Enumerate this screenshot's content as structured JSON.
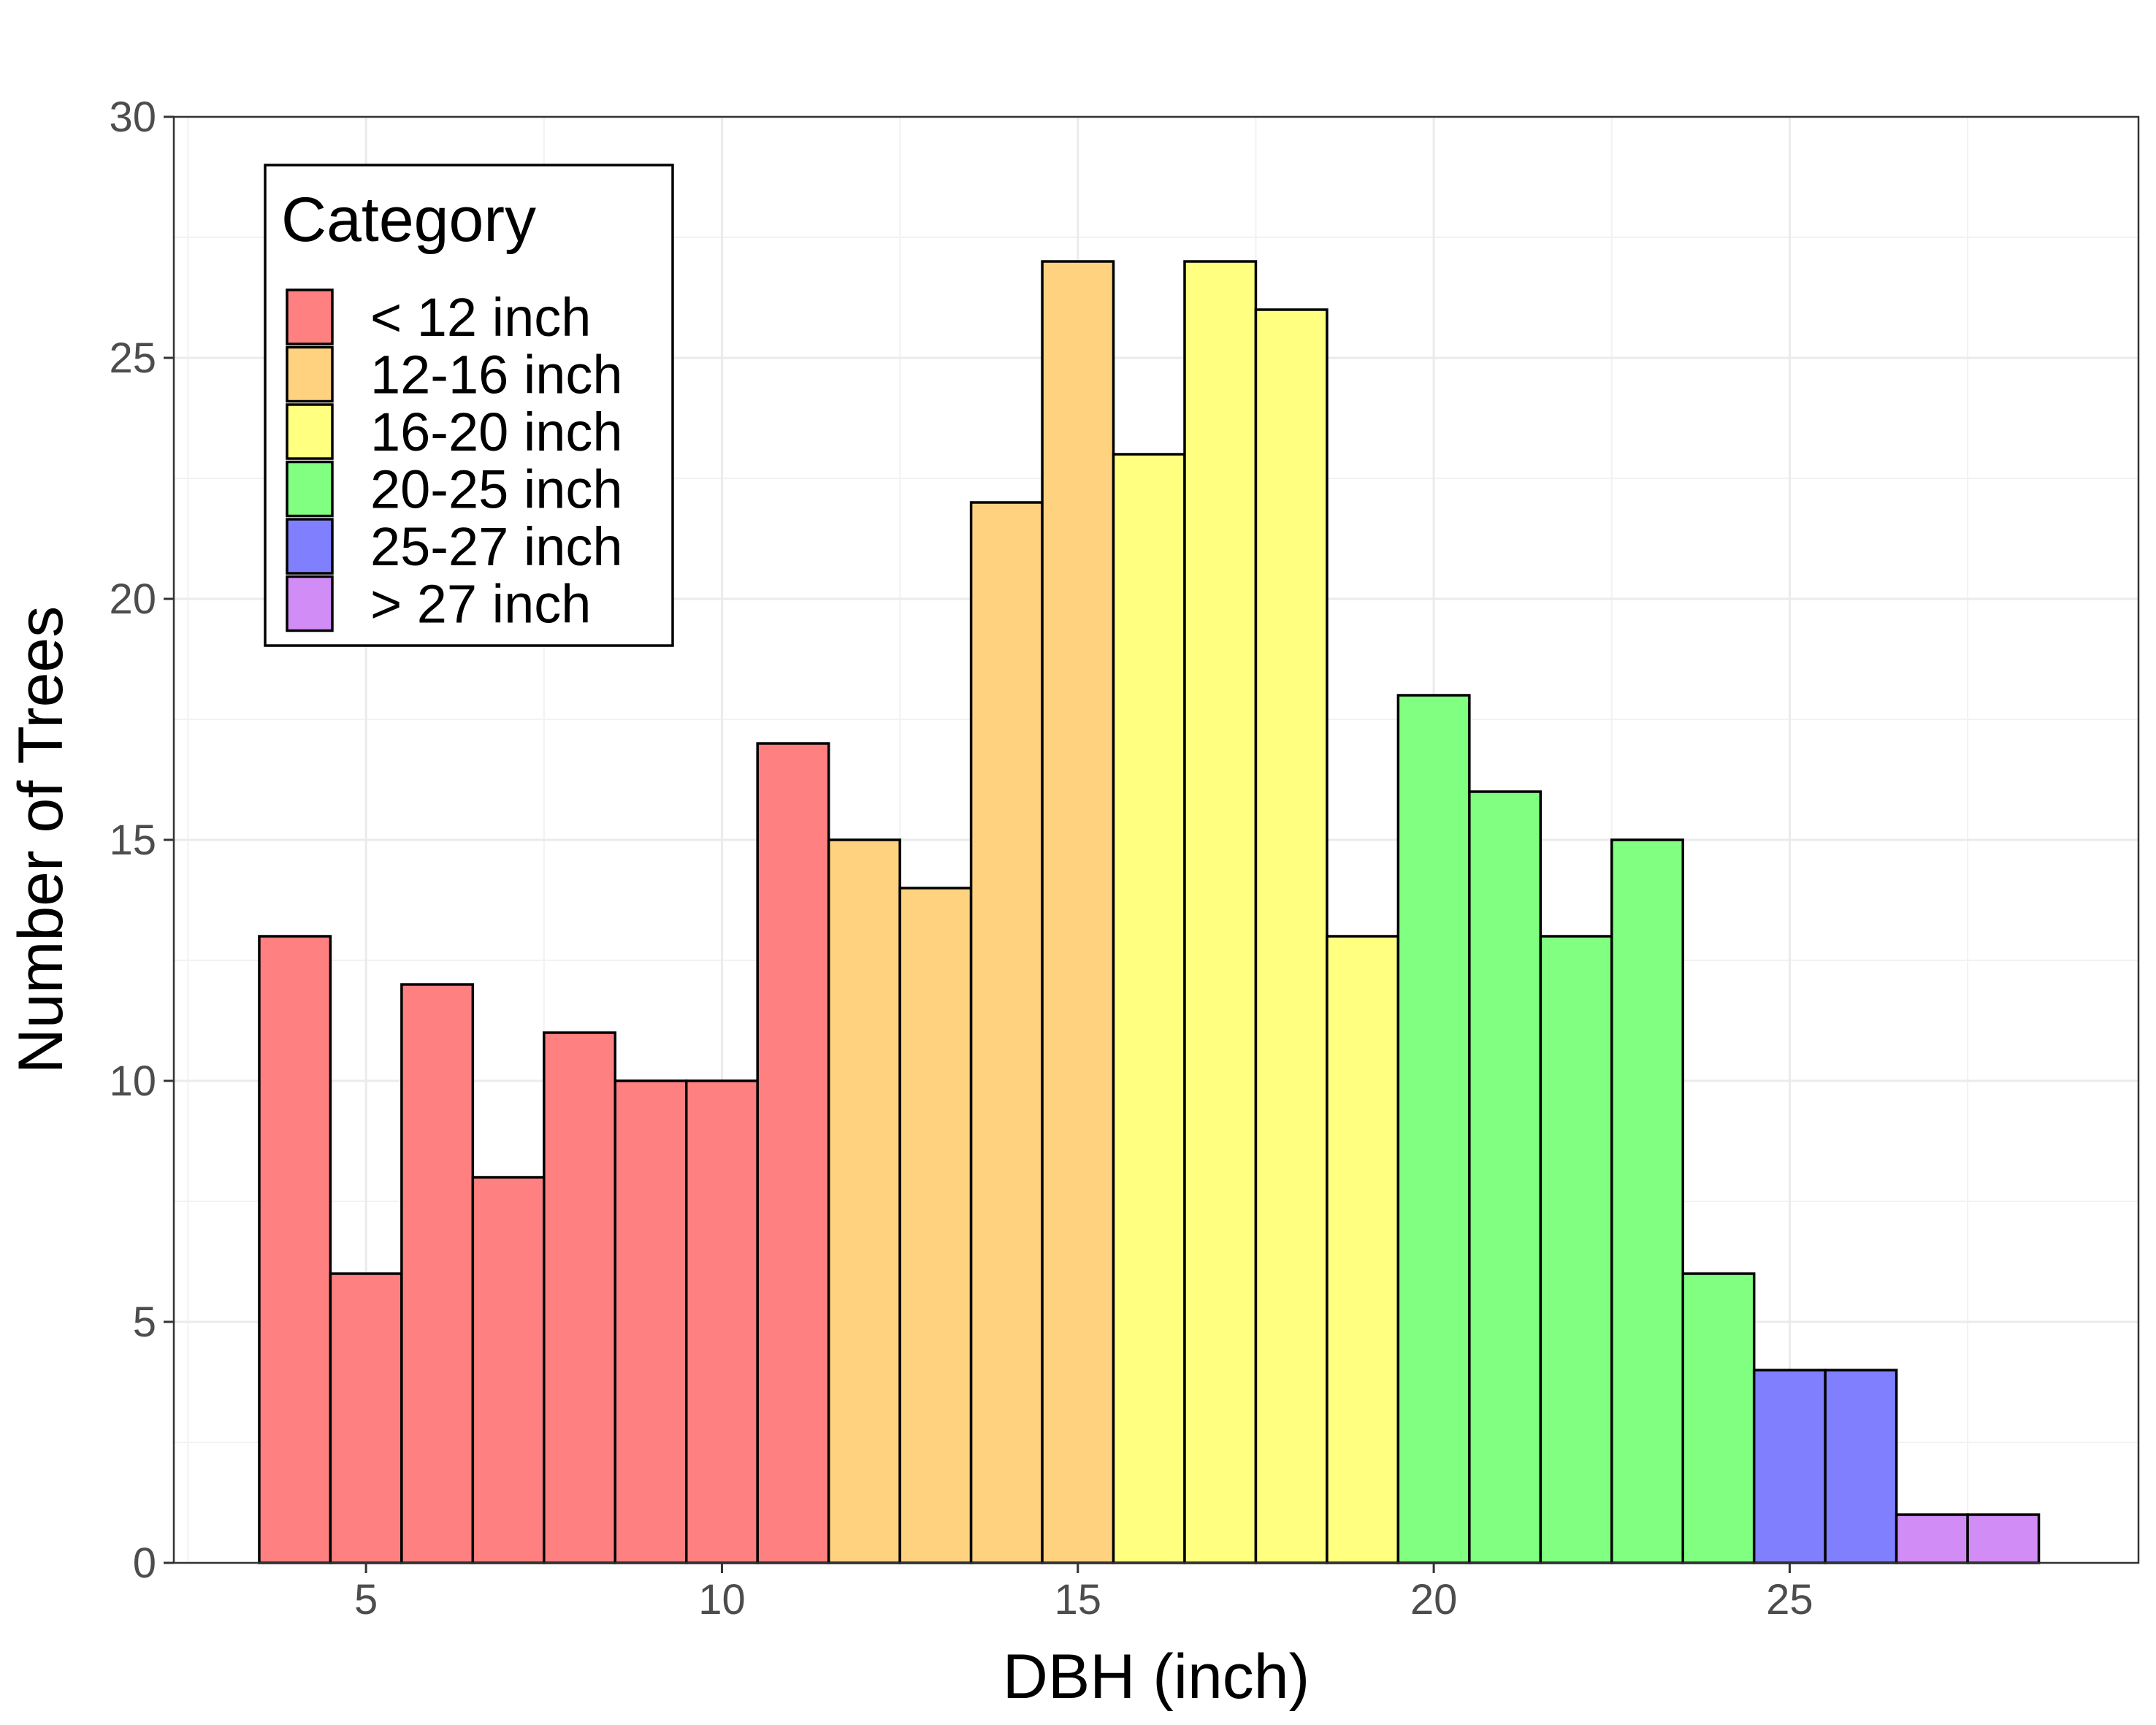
{
  "chart_data": {
    "type": "bar",
    "title": "",
    "xlabel": "DBH (inch)",
    "ylabel": "Number of Trees",
    "xlim": [
      2.3,
      29.9
    ],
    "ylim": [
      0,
      30
    ],
    "x_ticks": [
      5,
      10,
      15,
      20,
      25
    ],
    "y_ticks": [
      0,
      5,
      10,
      15,
      20,
      25,
      30
    ],
    "grid": true,
    "legend": {
      "title": "Category",
      "placement": "top-left"
    },
    "bin_width": 1,
    "series": [
      {
        "name": "< 12 inch",
        "color": "#FF8080",
        "x": [
          4,
          5,
          6,
          7,
          8,
          9,
          10,
          11
        ],
        "values": [
          13,
          6,
          12,
          8,
          11,
          10,
          10,
          17
        ]
      },
      {
        "name": "12-16 inch",
        "color": "#FFD280",
        "x": [
          12,
          13,
          14,
          15
        ],
        "values": [
          15,
          14,
          22,
          27
        ]
      },
      {
        "name": "16-20 inch",
        "color": "#FFFF80",
        "x": [
          16,
          17,
          18,
          19
        ],
        "values": [
          23,
          27,
          26,
          13
        ]
      },
      {
        "name": "20-25 inch",
        "color": "#80FF80",
        "x": [
          20,
          21,
          22,
          23,
          24
        ],
        "values": [
          18,
          16,
          13,
          15,
          6
        ]
      },
      {
        "name": "25-27 inch",
        "color": "#8080FF",
        "x": [
          25,
          26
        ],
        "values": [
          4,
          4
        ]
      },
      {
        "name": "> 27 inch",
        "color": "#D28CF5",
        "x": [
          27,
          28
        ],
        "values": [
          1,
          1
        ]
      }
    ]
  }
}
